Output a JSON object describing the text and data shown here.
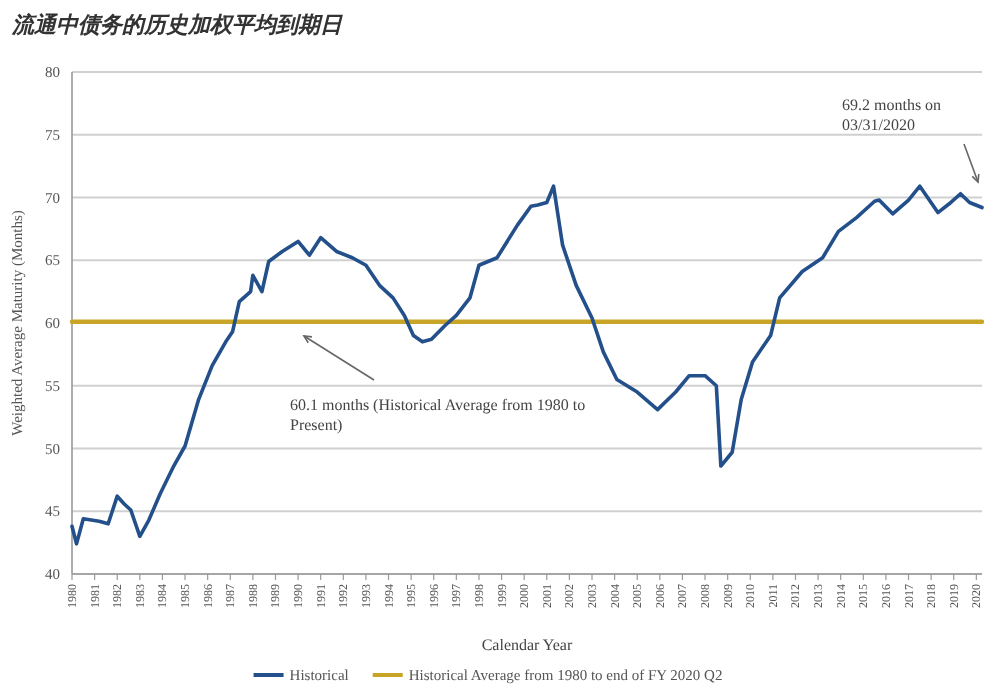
{
  "chart_data": {
    "type": "line",
    "title": "流通中债务的历史加权平均到期日",
    "xlabel": "Calendar Year",
    "ylabel": "Weighted Average Maturity (Months)",
    "xlim": [
      1980,
      2020.25
    ],
    "xticks": [
      1980,
      1981,
      1982,
      1983,
      1984,
      1985,
      1986,
      1987,
      1988,
      1989,
      1990,
      1991,
      1992,
      1993,
      1994,
      1995,
      1996,
      1997,
      1998,
      1999,
      2000,
      2001,
      2002,
      2003,
      2004,
      2005,
      2006,
      2007,
      2008,
      2009,
      2010,
      2011,
      2012,
      2013,
      2014,
      2015,
      2016,
      2017,
      2018,
      2019,
      2020
    ],
    "ylim": [
      40,
      80
    ],
    "yticks": [
      40,
      45,
      50,
      55,
      60,
      65,
      70,
      75,
      80
    ],
    "grid": "y",
    "legend": "bottom",
    "series": [
      {
        "name": "Historical",
        "color": "#23508a",
        "x": [
          1980.0,
          1980.2,
          1980.5,
          1981.2,
          1981.6,
          1982.0,
          1982.3,
          1982.6,
          1983.0,
          1983.4,
          1983.9,
          1984.5,
          1985.0,
          1985.6,
          1986.2,
          1986.8,
          1987.1,
          1987.4,
          1987.9,
          1988.0,
          1988.4,
          1988.7,
          1989.3,
          1990.0,
          1990.5,
          1991.0,
          1991.7,
          1992.4,
          1993.0,
          1993.6,
          1994.2,
          1994.7,
          1995.1,
          1995.5,
          1995.9,
          1996.5,
          1997.0,
          1997.6,
          1998.0,
          1998.8,
          1999.7,
          2000.3,
          2000.6,
          2001.0,
          2001.3,
          2001.7,
          2002.3,
          2003.0,
          2003.5,
          2004.1,
          2005.0,
          2005.9,
          2006.7,
          2007.3,
          2008.0,
          2008.5,
          2008.7,
          2009.2,
          2009.6,
          2010.1,
          2010.9,
          2011.3,
          2012.3,
          2013.2,
          2013.9,
          2014.7,
          2015.5,
          2015.7,
          2016.3,
          2017.0,
          2017.5,
          2018.3,
          2018.8,
          2019.3,
          2019.7,
          2020.25
        ],
        "values": [
          43.8,
          42.4,
          44.4,
          44.2,
          44.0,
          46.2,
          45.6,
          45.1,
          43.0,
          44.3,
          46.4,
          48.6,
          50.2,
          53.9,
          56.6,
          58.5,
          59.3,
          61.7,
          62.5,
          63.8,
          62.5,
          64.9,
          65.7,
          66.5,
          65.4,
          66.8,
          65.7,
          65.2,
          64.6,
          63.0,
          62.0,
          60.6,
          59.0,
          58.5,
          58.7,
          59.8,
          60.6,
          62.0,
          64.6,
          65.2,
          67.8,
          69.3,
          69.4,
          69.6,
          70.9,
          66.2,
          63.0,
          60.4,
          57.7,
          55.5,
          54.5,
          53.1,
          54.5,
          55.8,
          55.8,
          55.0,
          48.6,
          49.7,
          53.9,
          56.9,
          59.0,
          62.0,
          64.1,
          65.2,
          67.3,
          68.4,
          69.7,
          69.8,
          68.7,
          69.8,
          70.9,
          68.8,
          69.5,
          70.3,
          69.6,
          69.2
        ]
      },
      {
        "name": "Historical Average from 1980 to end of FY 2020 Q2",
        "color": "#c8a526",
        "x": [
          1980,
          2020.25
        ],
        "values": [
          60.1,
          60.1
        ]
      }
    ],
    "annotations": [
      "60.1 months (Historical Average from 1980 to Present)",
      "69.2 months on 03/31/2020"
    ]
  }
}
